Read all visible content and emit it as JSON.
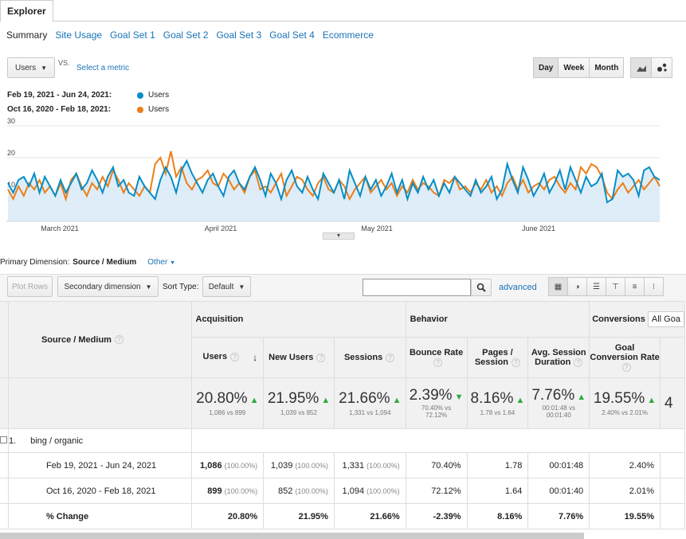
{
  "tabs": {
    "explorer": "Explorer"
  },
  "subnav": [
    "Summary",
    "Site Usage",
    "Goal Set 1",
    "Goal Set 2",
    "Goal Set 3",
    "Goal Set 4",
    "Ecommerce"
  ],
  "controls": {
    "metric": "Users",
    "vs": "VS.",
    "select_metric": "Select a metric",
    "granularity": [
      "Day",
      "Week",
      "Month"
    ]
  },
  "legend": [
    {
      "range": "Feb 19, 2021 - Jun 24, 2021:",
      "label": "Users",
      "color": "#058dc7"
    },
    {
      "range": "Oct 16, 2020 - Feb 18, 2021:",
      "label": "Users",
      "color": "#ed7e17"
    }
  ],
  "chart_data": {
    "type": "line",
    "ylim": [
      0,
      30
    ],
    "yticks": [
      "30",
      "20",
      "10"
    ],
    "x_labels": [
      "March 2021",
      "April 2021",
      "May 2021",
      "June 2021"
    ],
    "series": [
      {
        "name": "Users",
        "color": "#058dc7",
        "values": [
          12,
          9,
          13,
          14,
          11,
          15,
          9,
          14,
          11,
          8,
          13,
          9,
          12,
          15,
          10,
          12,
          16,
          13,
          9,
          14,
          17,
          11,
          13,
          9,
          8,
          14,
          11,
          9,
          7,
          13,
          17,
          14,
          9,
          16,
          19,
          15,
          12,
          9,
          13,
          15,
          11,
          8,
          14,
          16,
          12,
          10,
          14,
          17,
          13,
          8,
          15,
          12,
          7,
          13,
          16,
          11,
          9,
          14,
          10,
          7,
          15,
          12,
          9,
          13,
          7,
          16,
          12,
          8,
          14,
          10,
          13,
          8,
          11,
          15,
          9,
          13,
          7,
          12,
          9,
          14,
          10,
          13,
          8,
          12,
          9,
          14,
          12,
          10,
          8,
          13,
          9,
          11,
          14,
          7,
          10,
          18,
          13,
          9,
          17,
          13,
          8,
          11,
          15,
          9,
          12,
          16,
          10,
          17,
          13,
          9,
          14,
          11,
          12,
          15,
          6,
          7,
          16,
          14,
          15,
          13,
          8,
          16,
          17,
          14,
          13
        ]
      },
      {
        "name": "Users",
        "color": "#ed7e17",
        "values": [
          10,
          7,
          11,
          8,
          12,
          10,
          13,
          9,
          11,
          8,
          12,
          7,
          13,
          15,
          11,
          8,
          12,
          10,
          14,
          11,
          16,
          13,
          9,
          12,
          10,
          8,
          11,
          9,
          18,
          20,
          15,
          22,
          14,
          17,
          12,
          10,
          13,
          14,
          16,
          12,
          11,
          15,
          13,
          10,
          12,
          9,
          14,
          16,
          10,
          11,
          9,
          12,
          15,
          8,
          11,
          14,
          13,
          10,
          8,
          12,
          14,
          10,
          9,
          13,
          11,
          7,
          10,
          12,
          14,
          9,
          11,
          13,
          10,
          12,
          8,
          11,
          9,
          13,
          10,
          12,
          11,
          9,
          8,
          13,
          12,
          14,
          10,
          11,
          9,
          12,
          10,
          13,
          9,
          11,
          8,
          12,
          14,
          10,
          13,
          9,
          11,
          12,
          10,
          13,
          14,
          11,
          9,
          12,
          10,
          17,
          15,
          18,
          17,
          14,
          9,
          7,
          10,
          12,
          9,
          11,
          13,
          10,
          12,
          14,
          11
        ]
      }
    ]
  },
  "primary_dimension": {
    "label": "Primary Dimension:",
    "current": "Source / Medium",
    "other": "Other"
  },
  "toolbar": {
    "plot_rows": "Plot Rows",
    "secondary_dimension": "Secondary dimension",
    "sort_type_label": "Sort Type:",
    "sort_type_value": "Default",
    "search_placeholder": "",
    "advanced": "advanced"
  },
  "table": {
    "group_headers": {
      "acquisition": "Acquisition",
      "behavior": "Behavior",
      "conversions": "Conversions",
      "goals_dropdown": "All Goa"
    },
    "dimension_header": "Source / Medium",
    "columns": {
      "users": "Users",
      "new_users": "New Users",
      "sessions": "Sessions",
      "bounce_rate": "Bounce Rate",
      "pages_session": "Pages / Session",
      "avg_session_duration": "Avg. Session Duration",
      "goal_conv_rate": "Goal Conversion Rate"
    },
    "summary": {
      "users": {
        "pct": "20.80%",
        "detail": "1,086 vs 899"
      },
      "new_users": {
        "pct": "21.95%",
        "detail": "1,039 vs 852"
      },
      "sessions": {
        "pct": "21.66%",
        "detail": "1,331 vs 1,094"
      },
      "bounce_rate": {
        "pct": "2.39%",
        "detail": "70.40% vs 72.12%"
      },
      "pages_session": {
        "pct": "8.16%",
        "detail": "1.78 vs 1.64"
      },
      "avg_session_duration": {
        "pct": "7.76%",
        "detail": "00:01:48 vs 00:01:40"
      },
      "goal_conv_rate": {
        "pct": "19.55%",
        "detail": "2.40% vs 2.01%"
      },
      "extra": "4"
    },
    "row1": {
      "index": "1.",
      "label": "bing / organic"
    },
    "rows": [
      {
        "label": "Feb 19, 2021 - Jun 24, 2021",
        "users": "1,086",
        "users_pct": "(100.00%)",
        "new_users": "1,039",
        "new_users_pct": "(100.00%)",
        "sessions": "1,331",
        "sessions_pct": "(100.00%)",
        "bounce_rate": "70.40%",
        "pages_session": "1.78",
        "avg_session_duration": "00:01:48",
        "goal_conv_rate": "2.40%"
      },
      {
        "label": "Oct 16, 2020 - Feb 18, 2021",
        "users": "899",
        "users_pct": "(100.00%)",
        "new_users": "852",
        "new_users_pct": "(100.00%)",
        "sessions": "1,094",
        "sessions_pct": "(100.00%)",
        "bounce_rate": "72.12%",
        "pages_session": "1.64",
        "avg_session_duration": "00:01:40",
        "goal_conv_rate": "2.01%"
      }
    ],
    "change": {
      "label": "% Change",
      "users": "20.80%",
      "new_users": "21.95%",
      "sessions": "21.66%",
      "bounce_rate": "-2.39%",
      "pages_session": "8.16%",
      "avg_session_duration": "7.76%",
      "goal_conv_rate": "19.55%"
    }
  }
}
